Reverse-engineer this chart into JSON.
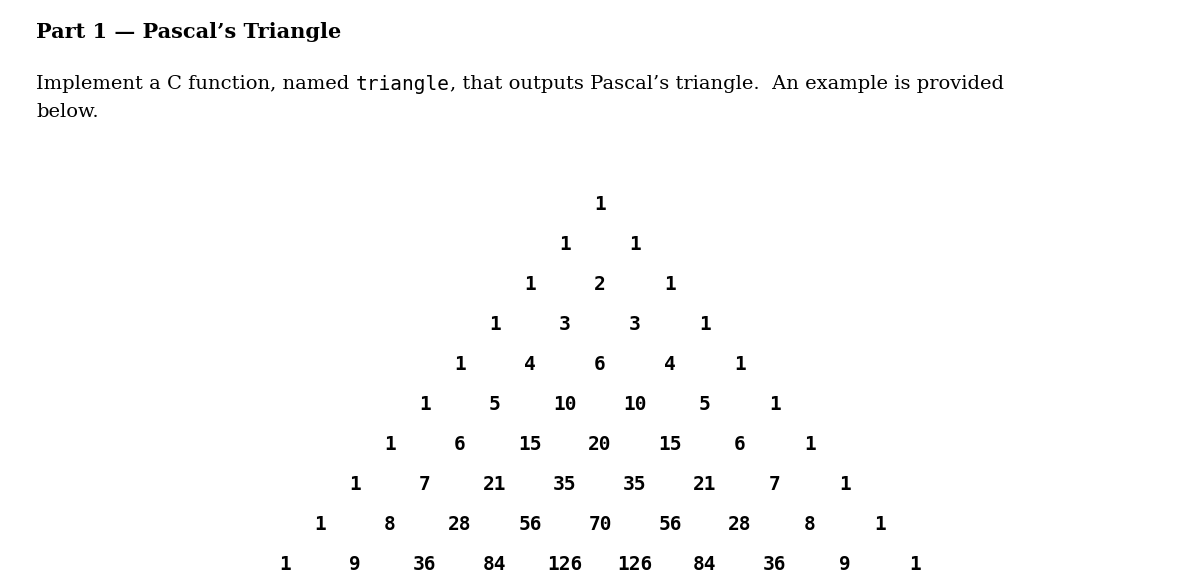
{
  "title": "Part 1 — Pascal’s Triangle",
  "title_fontsize": 15,
  "body_fontsize": 14,
  "code_word": "triangle",
  "triangle_rows": [
    [
      "1"
    ],
    [
      "1",
      "1"
    ],
    [
      "1",
      "2",
      "1"
    ],
    [
      "1",
      "3",
      "3",
      "1"
    ],
    [
      "1",
      "4",
      "6",
      "4",
      "1"
    ],
    [
      "1",
      "5",
      "10",
      "10",
      "5",
      "1"
    ],
    [
      "1",
      "6",
      "15",
      "20",
      "15",
      "6",
      "1"
    ],
    [
      "1",
      "7",
      "21",
      "35",
      "35",
      "21",
      "7",
      "1"
    ],
    [
      "1",
      "8",
      "28",
      "56",
      "70",
      "56",
      "28",
      "8",
      "1"
    ],
    [
      "1",
      "9",
      "36",
      "84",
      "126",
      "126",
      "84",
      "36",
      "9",
      "1"
    ]
  ],
  "triangle_fontsize": 14,
  "bg_color": "#ffffff",
  "text_color": "#000000",
  "fig_width": 12.0,
  "fig_height": 5.88
}
